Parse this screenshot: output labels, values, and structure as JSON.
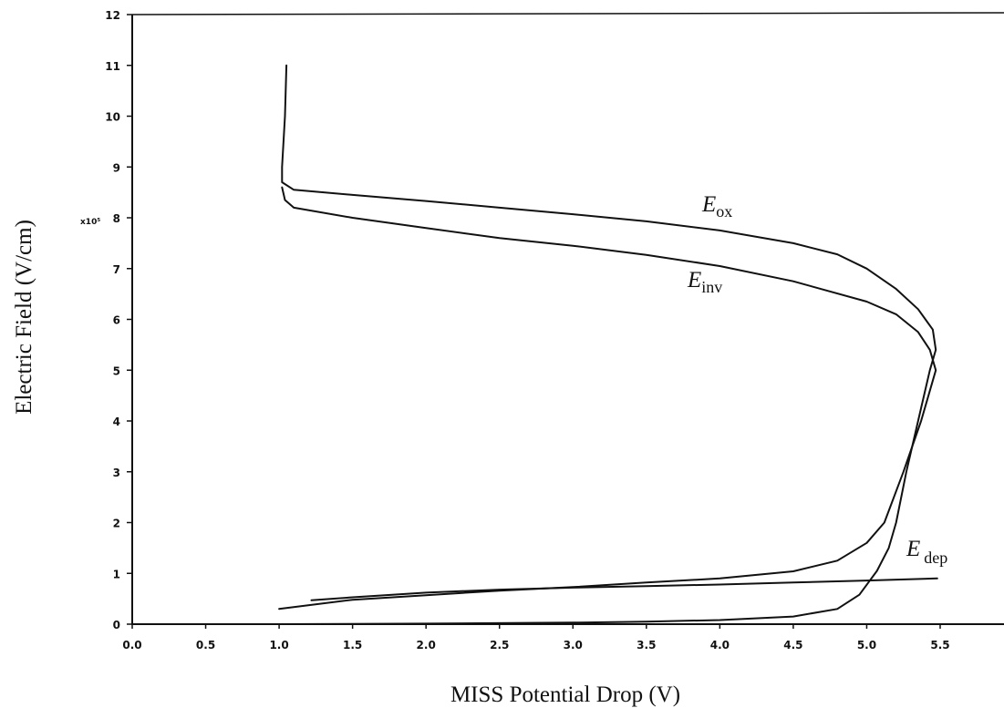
{
  "chart_data": {
    "type": "line",
    "xlabel": "MISS Potential Drop (V)",
    "ylabel": "Electric Field (V/cm)",
    "y_multiplier": "x10⁵",
    "xlim": [
      0.0,
      5.9
    ],
    "ylim": [
      0,
      12
    ],
    "x_ticks": [
      "0.0",
      "0.5",
      "1.0",
      "1.5",
      "2.0",
      "2.5",
      "3.0",
      "3.5",
      "4.0",
      "4.5",
      "5.0",
      "5.5"
    ],
    "y_ticks": [
      "0",
      "1",
      "2",
      "3",
      "4",
      "5",
      "6",
      "7",
      "8",
      "9",
      "10",
      "11",
      "12"
    ],
    "grid": false,
    "legend": "none",
    "series": [
      {
        "name": "E_ox",
        "label_main": "E",
        "label_sub": "ox",
        "points": [
          [
            1.05,
            11.0
          ],
          [
            1.04,
            10.0
          ],
          [
            1.02,
            9.0
          ],
          [
            1.02,
            8.7
          ],
          [
            1.1,
            8.55
          ],
          [
            1.5,
            8.45
          ],
          [
            2.0,
            8.33
          ],
          [
            2.5,
            8.2
          ],
          [
            3.0,
            8.07
          ],
          [
            3.5,
            7.93
          ],
          [
            4.0,
            7.75
          ],
          [
            4.5,
            7.5
          ],
          [
            4.8,
            7.28
          ],
          [
            5.0,
            7.0
          ],
          [
            5.2,
            6.6
          ],
          [
            5.35,
            6.2
          ],
          [
            5.45,
            5.8
          ],
          [
            5.47,
            5.4
          ],
          [
            5.43,
            5.0
          ],
          [
            5.35,
            4.0
          ],
          [
            5.27,
            3.0
          ],
          [
            5.2,
            2.0
          ],
          [
            5.15,
            1.5
          ],
          [
            5.07,
            1.05
          ],
          [
            4.95,
            0.58
          ],
          [
            4.8,
            0.3
          ],
          [
            4.5,
            0.15
          ],
          [
            4.0,
            0.08
          ],
          [
            3.5,
            0.05
          ],
          [
            3.0,
            0.03
          ],
          [
            2.0,
            0.01
          ],
          [
            1.0,
            0.0
          ],
          [
            0.0,
            0.0
          ]
        ]
      },
      {
        "name": "E_inv",
        "label_main": "E",
        "label_sub": "inv",
        "points": [
          [
            1.02,
            8.6
          ],
          [
            1.04,
            8.35
          ],
          [
            1.1,
            8.2
          ],
          [
            1.5,
            8.0
          ],
          [
            2.0,
            7.8
          ],
          [
            2.5,
            7.6
          ],
          [
            3.0,
            7.45
          ],
          [
            3.5,
            7.27
          ],
          [
            4.0,
            7.05
          ],
          [
            4.5,
            6.75
          ],
          [
            5.0,
            6.35
          ],
          [
            5.2,
            6.1
          ],
          [
            5.35,
            5.75
          ],
          [
            5.43,
            5.4
          ],
          [
            5.47,
            5.0
          ],
          [
            5.37,
            4.0
          ],
          [
            5.25,
            3.0
          ],
          [
            5.12,
            2.0
          ],
          [
            5.0,
            1.6
          ],
          [
            4.8,
            1.25
          ],
          [
            4.5,
            1.04
          ],
          [
            4.0,
            0.9
          ],
          [
            3.5,
            0.82
          ],
          [
            3.0,
            0.73
          ],
          [
            2.5,
            0.66
          ],
          [
            2.0,
            0.57
          ],
          [
            1.5,
            0.48
          ],
          [
            1.0,
            0.3
          ]
        ]
      },
      {
        "name": "E_dep",
        "label_main": "E",
        "label_sub": "dep",
        "points": [
          [
            1.22,
            0.47
          ],
          [
            1.5,
            0.53
          ],
          [
            2.0,
            0.62
          ],
          [
            2.5,
            0.68
          ],
          [
            3.0,
            0.72
          ],
          [
            3.5,
            0.75
          ],
          [
            4.0,
            0.78
          ],
          [
            4.5,
            0.82
          ],
          [
            5.0,
            0.86
          ],
          [
            5.48,
            0.9
          ]
        ]
      }
    ]
  }
}
